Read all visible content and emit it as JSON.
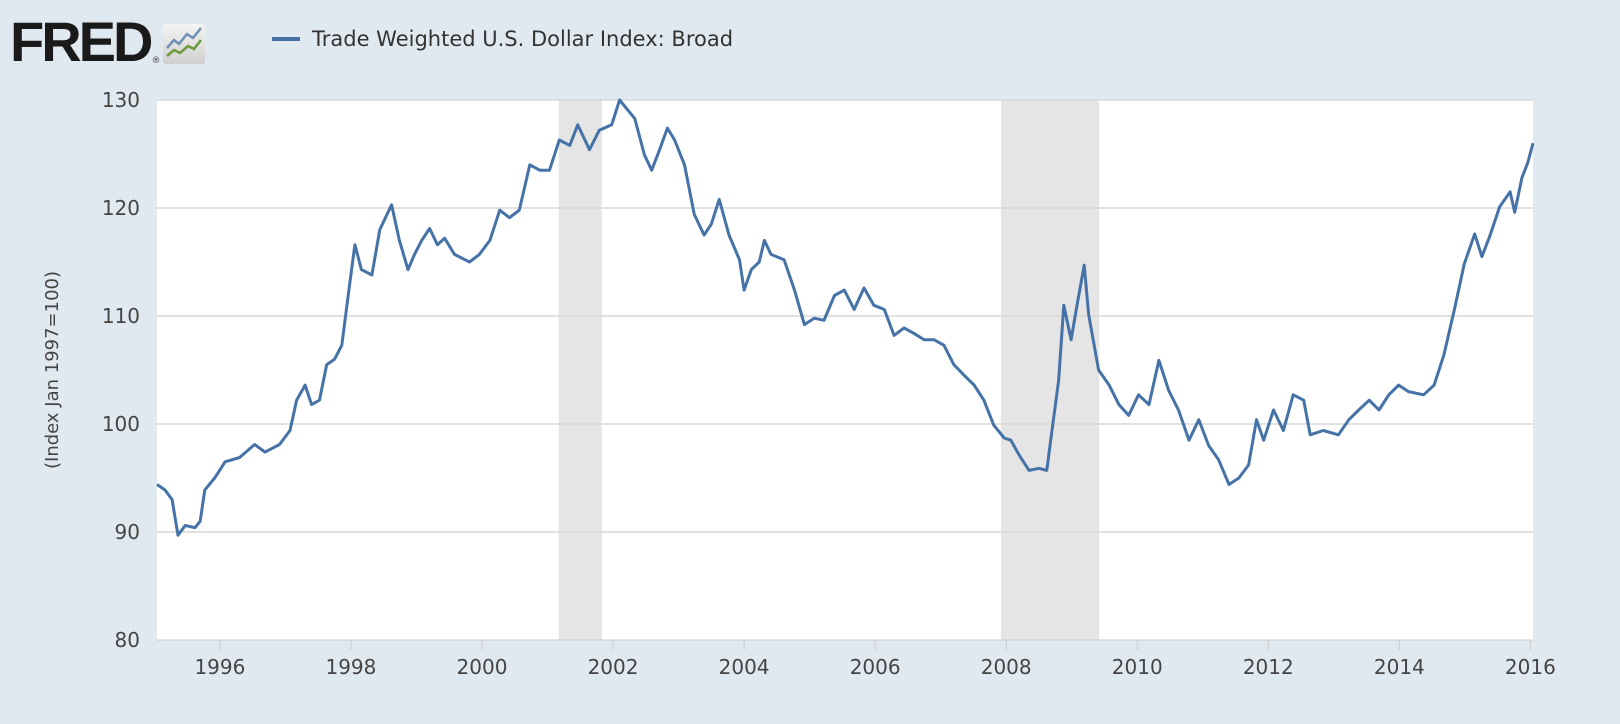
{
  "logo": {
    "text": "FRED",
    "registered": "®"
  },
  "colors": {
    "background": "#e1e9f0",
    "series": "#4572a7",
    "recession": "#e5e5e5",
    "grid": "#d8d8d8"
  },
  "chart_data": {
    "type": "line",
    "title": "",
    "legend": {
      "position": "top-left",
      "entries": [
        "Trade Weighted U.S. Dollar Index: Broad"
      ]
    },
    "xlabel": "",
    "ylabel": "(Index Jan 1997=100)",
    "xlim": [
      1995.04,
      2016.04
    ],
    "ylim": [
      80,
      130
    ],
    "grid": true,
    "x_ticks": [
      1996,
      1998,
      2000,
      2002,
      2004,
      2006,
      2008,
      2010,
      2012,
      2014,
      2016
    ],
    "x_tick_labels": [
      "1996",
      "1998",
      "2000",
      "2002",
      "2004",
      "2006",
      "2008",
      "2010",
      "2012",
      "2014",
      "2016"
    ],
    "y_ticks": [
      80,
      90,
      100,
      110,
      120,
      130
    ],
    "y_tick_labels": [
      "80",
      "90",
      "100",
      "110",
      "120",
      "130"
    ],
    "recessions": [
      [
        2001.17,
        2001.83
      ],
      [
        2007.92,
        2009.42
      ]
    ],
    "series": [
      {
        "name": "Trade Weighted U.S. Dollar Index: Broad",
        "x": [
          1995.04,
          1995.16,
          1995.27,
          1995.36,
          1995.47,
          1995.62,
          1995.7,
          1995.77,
          1995.92,
          1996.08,
          1996.3,
          1996.53,
          1996.69,
          1996.91,
          1997.07,
          1997.17,
          1997.3,
          1997.4,
          1997.52,
          1997.63,
          1997.75,
          1997.86,
          1997.98,
          1998.06,
          1998.16,
          1998.32,
          1998.44,
          1998.62,
          1998.74,
          1998.87,
          1998.97,
          1999.08,
          1999.2,
          1999.32,
          1999.43,
          1999.58,
          1999.81,
          1999.96,
          2000.12,
          2000.27,
          2000.42,
          2000.57,
          2000.73,
          2000.88,
          2001.03,
          2001.18,
          2001.34,
          2001.46,
          2001.64,
          2001.79,
          2001.98,
          2002.1,
          2002.22,
          2002.33,
          2002.48,
          2002.59,
          2002.71,
          2002.83,
          2002.94,
          2003.09,
          2003.24,
          2003.39,
          2003.5,
          2003.62,
          2003.77,
          2003.93,
          2004.0,
          2004.11,
          2004.23,
          2004.31,
          2004.41,
          2004.61,
          2004.77,
          2004.92,
          2005.07,
          2005.22,
          2005.38,
          2005.53,
          2005.68,
          2005.83,
          2005.98,
          2006.14,
          2006.29,
          2006.44,
          2006.59,
          2006.75,
          2006.9,
          2007.05,
          2007.2,
          2007.36,
          2007.51,
          2007.66,
          2007.81,
          2007.97,
          2008.07,
          2008.2,
          2008.35,
          2008.5,
          2008.62,
          2008.68,
          2008.8,
          2008.88,
          2008.99,
          2009.08,
          2009.19,
          2009.26,
          2009.41,
          2009.57,
          2009.72,
          2009.87,
          2010.02,
          2010.18,
          2010.33,
          2010.48,
          2010.63,
          2010.79,
          2010.94,
          2011.09,
          2011.24,
          2011.4,
          2011.55,
          2011.7,
          2011.82,
          2011.93,
          2012.08,
          2012.23,
          2012.38,
          2012.54,
          2012.64,
          2012.84,
          2013.07,
          2013.23,
          2013.38,
          2013.54,
          2013.69,
          2013.84,
          2013.99,
          2014.14,
          2014.37,
          2014.53,
          2014.68,
          2014.84,
          2014.99,
          2015.15,
          2015.26,
          2015.38,
          2015.53,
          2015.69,
          2015.76,
          2015.87,
          2015.96,
          2016.04
        ],
        "values": [
          94.4,
          93.9,
          93.0,
          89.7,
          90.6,
          90.4,
          91.0,
          93.9,
          95.0,
          96.5,
          96.9,
          98.1,
          97.4,
          98.1,
          99.4,
          102.2,
          103.6,
          101.8,
          102.2,
          105.5,
          106.0,
          107.3,
          112.9,
          116.6,
          114.3,
          113.8,
          118.0,
          120.3,
          117.0,
          114.3,
          115.7,
          117.0,
          118.1,
          116.6,
          117.2,
          115.7,
          115.0,
          115.7,
          117.0,
          119.8,
          119.1,
          119.8,
          124.0,
          123.5,
          123.5,
          126.3,
          125.8,
          127.7,
          125.4,
          127.2,
          127.7,
          130.0,
          129.1,
          128.3,
          124.9,
          123.5,
          125.4,
          127.4,
          126.3,
          124.0,
          119.4,
          117.5,
          118.5,
          120.8,
          117.5,
          115.2,
          112.4,
          114.3,
          115.0,
          117.0,
          115.7,
          115.2,
          112.4,
          109.2,
          109.8,
          109.6,
          111.9,
          112.4,
          110.6,
          112.6,
          111.0,
          110.6,
          108.2,
          108.9,
          108.4,
          107.8,
          107.8,
          107.3,
          105.5,
          104.5,
          103.6,
          102.2,
          99.9,
          98.7,
          98.5,
          97.1,
          95.7,
          95.9,
          95.7,
          98.5,
          104.0,
          111.0,
          107.8,
          111.0,
          114.7,
          110.1,
          105.0,
          103.6,
          101.8,
          100.8,
          102.7,
          101.8,
          105.9,
          103.1,
          101.3,
          98.5,
          100.4,
          98.0,
          96.7,
          94.4,
          95.0,
          96.2,
          100.4,
          98.5,
          101.3,
          99.4,
          102.7,
          102.2,
          99.0,
          99.4,
          99.0,
          100.4,
          101.3,
          102.2,
          101.3,
          102.7,
          103.6,
          103.0,
          102.7,
          103.6,
          106.4,
          110.6,
          114.8,
          117.6,
          115.5,
          117.4,
          120.1,
          121.5,
          119.6,
          122.8,
          124.2,
          126.0
        ]
      }
    ]
  }
}
